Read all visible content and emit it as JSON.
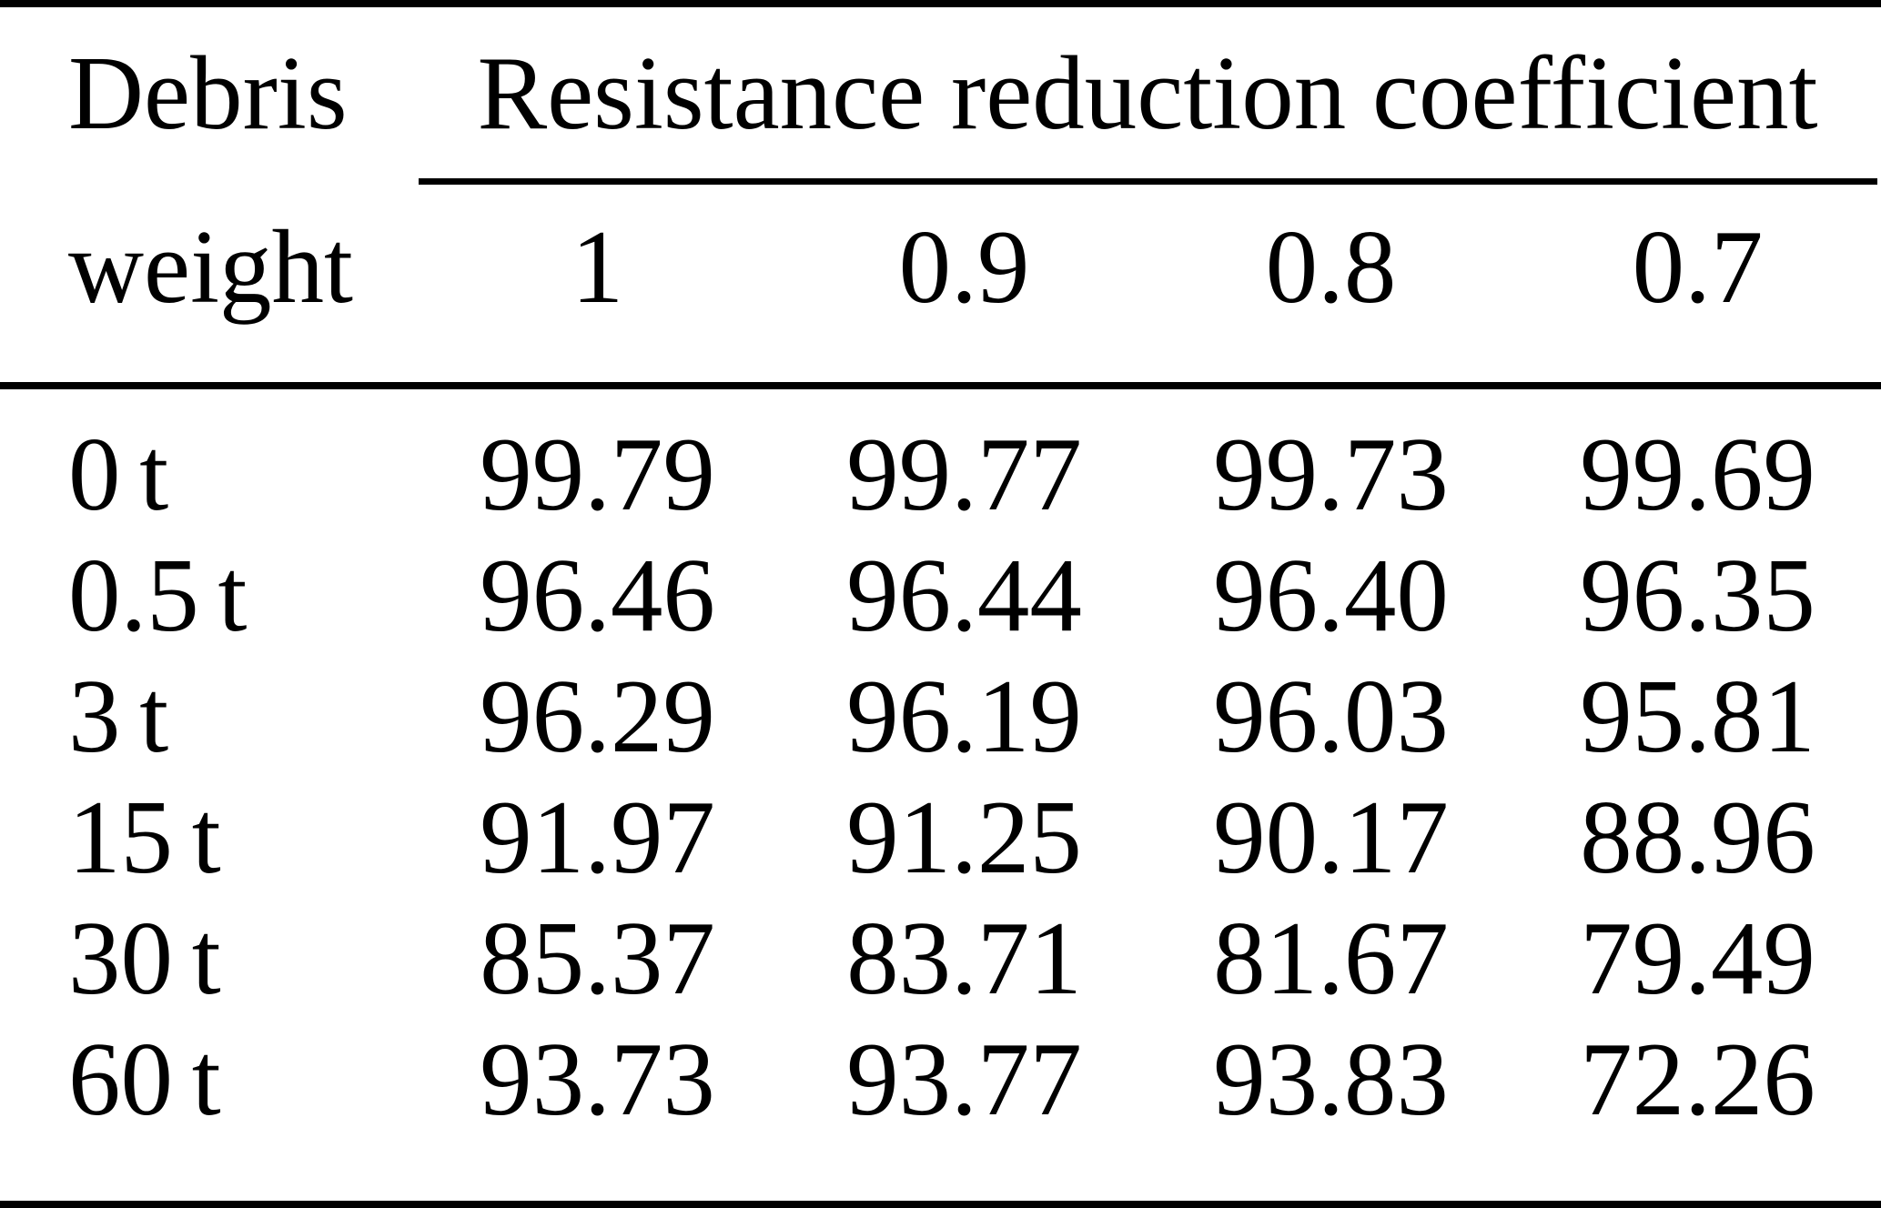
{
  "table": {
    "row_header": {
      "line1": "Debris",
      "line2": "weight"
    },
    "column_group_header": "Resistance reduction coefficient",
    "coefficient_columns": [
      "1",
      "0.9",
      "0.8",
      "0.7"
    ],
    "rows": [
      {
        "label": "0 t",
        "values": [
          "99.79",
          "99.77",
          "99.73",
          "99.69"
        ]
      },
      {
        "label": "0.5 t",
        "values": [
          "96.46",
          "96.44",
          "96.40",
          "96.35"
        ]
      },
      {
        "label": "3 t",
        "values": [
          "96.29",
          "96.19",
          "96.03",
          "95.81"
        ]
      },
      {
        "label": "15 t",
        "values": [
          "91.97",
          "91.25",
          "90.17",
          "88.96"
        ]
      },
      {
        "label": "30 t",
        "values": [
          "85.37",
          "83.71",
          "81.67",
          "79.49"
        ]
      },
      {
        "label": "60 t",
        "values": [
          "93.73",
          "93.77",
          "93.83",
          "72.26"
        ]
      }
    ]
  },
  "colors": {
    "text": "#000000",
    "background": "#ffffff",
    "rule": "#000000"
  }
}
